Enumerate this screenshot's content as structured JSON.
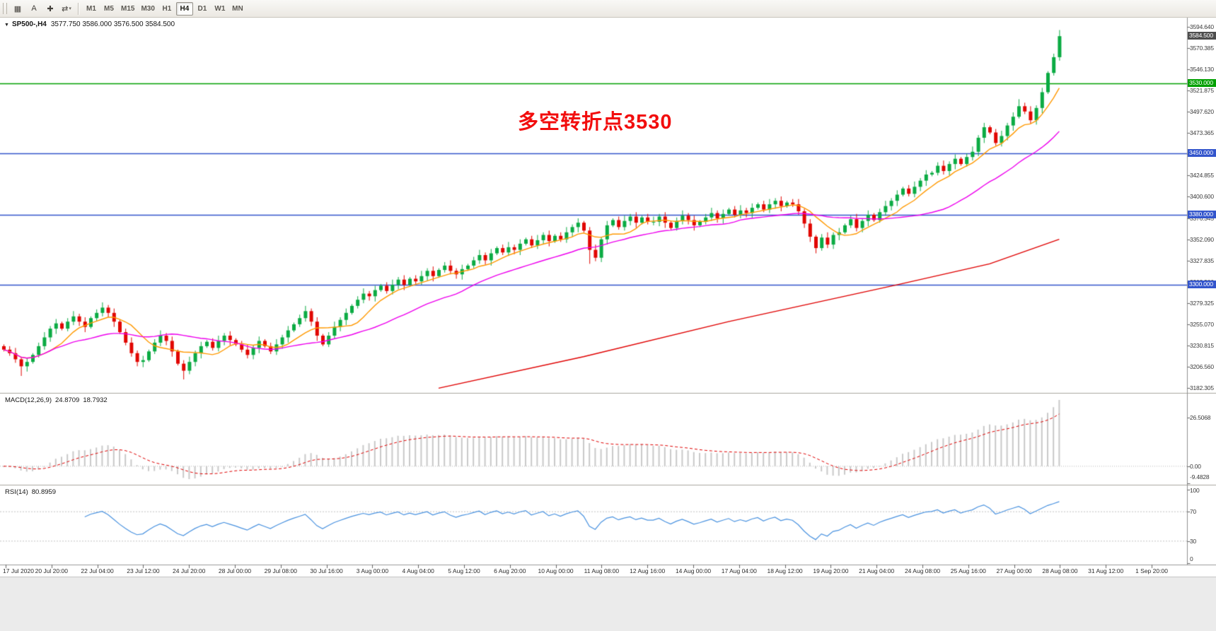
{
  "toolbar": {
    "tools": [
      {
        "name": "chart-window-icon",
        "glyph": "▦"
      },
      {
        "name": "text-annotation-icon",
        "glyph": "A"
      },
      {
        "name": "crosshair-icon",
        "glyph": "✚"
      },
      {
        "name": "timeframes-dropdown-icon",
        "glyph": "⇄",
        "dropdown": true
      }
    ],
    "timeframes": [
      "M1",
      "M5",
      "M15",
      "M30",
      "H1",
      "H4",
      "D1",
      "W1",
      "MN"
    ],
    "active_timeframe": "H4"
  },
  "chart": {
    "expander_glyph": "▼",
    "symbol": "SP500-,H4",
    "ohlc_text": "3577.750 3586.000 3576.500 3584.500",
    "current_price": {
      "value": 3584.5,
      "label": "3584.500",
      "bg": "#4d4d4d"
    }
  },
  "chart_data": [
    {
      "type": "candlestick",
      "title": "SP500-,H4",
      "timeframe": "H4",
      "up_color": "#0bab43",
      "down_color": "#e10600",
      "ylim": [
        3175,
        3601
      ],
      "y_ticks": [
        "3594.640",
        "3570.385",
        "3546.130",
        "3521.875",
        "3497.620",
        "3473.365",
        "3449.110",
        "3424.855",
        "3400.600",
        "3376.345",
        "3352.090",
        "3327.835",
        "3303.580",
        "3279.325",
        "3255.070",
        "3230.815",
        "3206.560",
        "3182.305"
      ],
      "x_labels": [
        "17 Jul 2020",
        "20 Jul 20:00",
        "22 Jul 04:00",
        "23 Jul 12:00",
        "24 Jul 20:00",
        "28 Jul 00:00",
        "29 Jul 08:00",
        "30 Jul 16:00",
        "3 Aug 00:00",
        "4 Aug 04:00",
        "5 Aug 12:00",
        "6 Aug 20:00",
        "10 Aug 00:00",
        "11 Aug 08:00",
        "12 Aug 16:00",
        "14 Aug 00:00",
        "17 Aug 04:00",
        "18 Aug 12:00",
        "19 Aug 20:00",
        "21 Aug 04:00",
        "24 Aug 08:00",
        "25 Aug 16:00",
        "27 Aug 00:00",
        "28 Aug 08:00",
        "31 Aug 12:00",
        "1 Sep 20:00"
      ],
      "first_open": 3230,
      "closes": [
        3226,
        3222,
        3215,
        3207,
        3212,
        3220,
        3230,
        3240,
        3250,
        3256,
        3250,
        3258,
        3264,
        3258,
        3252,
        3262,
        3268,
        3274,
        3268,
        3258,
        3246,
        3234,
        3222,
        3212,
        3214,
        3224,
        3234,
        3242,
        3236,
        3224,
        3210,
        3202,
        3212,
        3222,
        3230,
        3235,
        3228,
        3236,
        3242,
        3237,
        3232,
        3226,
        3220,
        3228,
        3236,
        3230,
        3224,
        3232,
        3240,
        3248,
        3255,
        3262,
        3270,
        3258,
        3242,
        3232,
        3242,
        3252,
        3260,
        3268,
        3276,
        3283,
        3290,
        3287,
        3294,
        3299,
        3293,
        3300,
        3306,
        3300,
        3307,
        3304,
        3310,
        3316,
        3310,
        3317,
        3322,
        3316,
        3312,
        3318,
        3322,
        3328,
        3334,
        3328,
        3336,
        3342,
        3337,
        3343,
        3340,
        3347,
        3352,
        3345,
        3351,
        3357,
        3350,
        3356,
        3352,
        3360,
        3366,
        3371,
        3362,
        3340,
        3331,
        3352,
        3368,
        3374,
        3366,
        3373,
        3378,
        3371,
        3377,
        3372,
        3372,
        3378,
        3371,
        3365,
        3373,
        3379,
        3374,
        3368,
        3372,
        3377,
        3382,
        3376,
        3381,
        3386,
        3380,
        3385,
        3382,
        3388,
        3392,
        3386,
        3392,
        3396,
        3390,
        3394,
        3392,
        3384,
        3370,
        3355,
        3342,
        3354,
        3346,
        3357,
        3360,
        3368,
        3375,
        3365,
        3373,
        3380,
        3374,
        3383,
        3390,
        3396,
        3403,
        3410,
        3404,
        3412,
        3419,
        3426,
        3428,
        3436,
        3430,
        3438,
        3444,
        3438,
        3446,
        3452,
        3468,
        3480,
        3474,
        3462,
        3470,
        3482,
        3492,
        3504,
        3498,
        3488,
        3502,
        3520,
        3542,
        3560,
        3584
      ],
      "wick_overrides": {
        "3": {
          "low": 3196
        },
        "31": {
          "low": 3192
        },
        "101": {
          "low": 3324
        },
        "140": {
          "low": 3336
        },
        "175": {
          "high": 3512
        },
        "182": {
          "high": 3591
        }
      },
      "levels": [
        {
          "price": 3530,
          "label": "3530.000",
          "color": "#00a000",
          "name": "level-3530"
        },
        {
          "price": 3450,
          "label": "3450.000",
          "color": "#3355cc",
          "name": "level-3450"
        },
        {
          "price": 3380,
          "label": "3380.000",
          "color": "#3355cc",
          "name": "level-3380"
        },
        {
          "price": 3300,
          "label": "3300.000",
          "color": "#3355cc",
          "name": "level-3300"
        }
      ],
      "moving_averages": [
        {
          "name": "ma-fast",
          "type": "sma",
          "period": 8,
          "color": "#ff9900"
        },
        {
          "name": "ma-mid",
          "type": "sma",
          "period": 25,
          "color": "#ee00ee"
        },
        {
          "name": "ma-slow",
          "color": "#e00000",
          "points": [
            [
              75,
              3182
            ],
            [
              100,
              3218
            ],
            [
              125,
              3258
            ],
            [
              154,
              3300
            ],
            [
              170,
              3324
            ],
            [
              182,
              3352
            ]
          ]
        }
      ],
      "annotation": {
        "text": "多空转折点3530",
        "color": "#f20d0d"
      }
    },
    {
      "type": "macd",
      "label": "MACD(12,26,9)",
      "main_value": "24.8709",
      "signal_value": "18.7932",
      "params": [
        12,
        26,
        9
      ],
      "y_ticks": [
        "26.5068",
        "0.00",
        "-9.4828"
      ],
      "histogram_color": "#c9c9c9",
      "signal_color": "#e00000",
      "signal_style": "dashed"
    },
    {
      "type": "rsi",
      "label": "RSI(14)",
      "value": "80.8959",
      "period": 14,
      "y_ticks": [
        "100",
        "70",
        "30",
        "0"
      ],
      "levels": [
        70,
        30
      ],
      "line_color": "#4992e0"
    }
  ]
}
